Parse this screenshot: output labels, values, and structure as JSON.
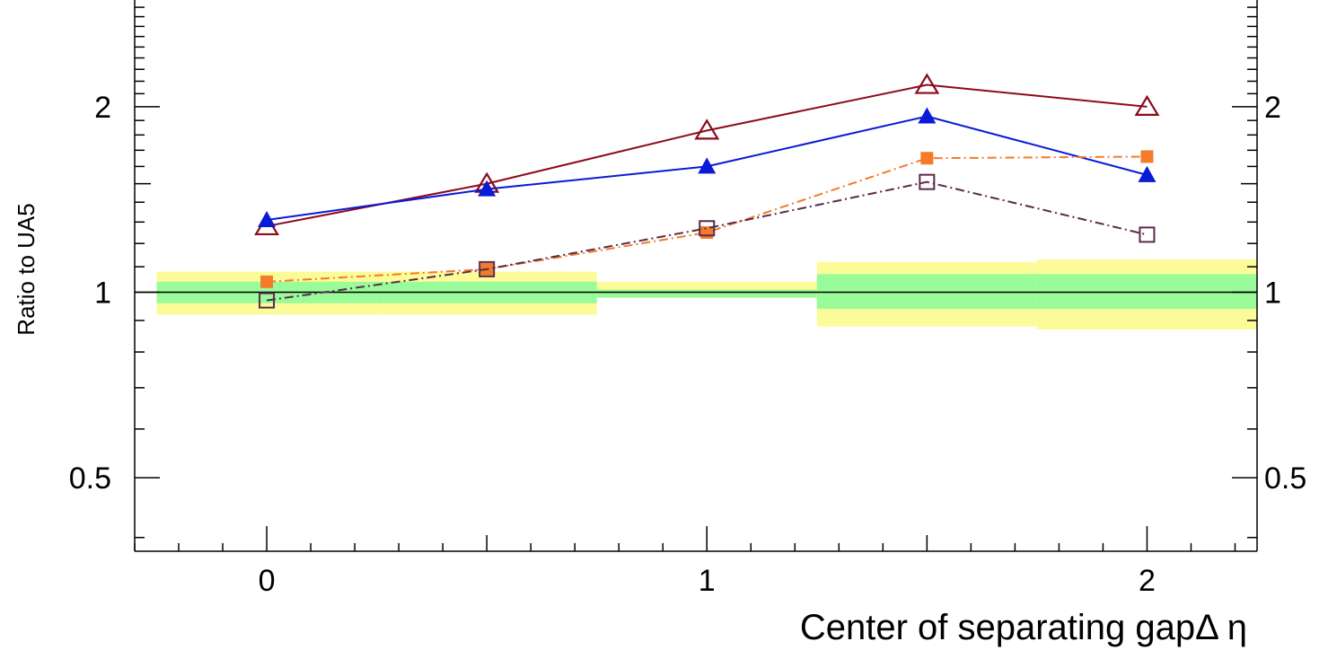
{
  "chart_data": {
    "type": "line",
    "xlabel": "Center of separating gapΔ η",
    "ylabel": "Ratio to UA5",
    "y_scale": "log",
    "xlim": [
      -0.3,
      2.25
    ],
    "ylim": [
      0.38,
      3.0
    ],
    "x_ticks": [
      0,
      1,
      2
    ],
    "x_tick_labels": [
      "0",
      "1",
      "2"
    ],
    "y_ticks": [
      0.5,
      1,
      2
    ],
    "y_tick_labels": [
      "0.5",
      "1",
      "2"
    ],
    "reference_line": 1,
    "uncertainty_bands": [
      {
        "x_range": [
          -0.25,
          0.25
        ],
        "inner": [
          0.96,
          1.04
        ],
        "outer": [
          0.92,
          1.08
        ]
      },
      {
        "x_range": [
          0.25,
          0.75
        ],
        "inner": [
          0.96,
          1.04
        ],
        "outer": [
          0.92,
          1.08
        ]
      },
      {
        "x_range": [
          0.75,
          1.25
        ],
        "inner": [
          0.98,
          1.01
        ],
        "outer": [
          0.98,
          1.04
        ]
      },
      {
        "x_range": [
          1.25,
          1.75
        ],
        "inner": [
          0.94,
          1.07
        ],
        "outer": [
          0.88,
          1.12
        ]
      },
      {
        "x_range": [
          1.75,
          2.25
        ],
        "inner": [
          0.94,
          1.07
        ],
        "outer": [
          0.87,
          1.13
        ]
      }
    ],
    "x": [
      0,
      0.5,
      1,
      1.5,
      2
    ],
    "series": [
      {
        "values": [
          1.28,
          1.5,
          1.83,
          2.17,
          2.0
        ],
        "color": "#8b0a1a",
        "marker": "open-triangle",
        "line": "solid"
      },
      {
        "values": [
          1.31,
          1.47,
          1.6,
          1.93,
          1.55
        ],
        "color": "#0a1ad6",
        "marker": "filled-triangle",
        "line": "solid"
      },
      {
        "values": [
          1.04,
          1.09,
          1.25,
          1.65,
          1.66
        ],
        "color": "#f47b2a",
        "marker": "filled-square",
        "line": "dashdot"
      },
      {
        "values": [
          0.97,
          1.09,
          1.27,
          1.51,
          1.24
        ],
        "color": "#5a2a4a",
        "marker": "open-square",
        "line": "dashdot"
      }
    ],
    "colors": {
      "band_outer": "#fbfb99",
      "band_inner": "#99fb99",
      "axis": "#000000"
    }
  }
}
